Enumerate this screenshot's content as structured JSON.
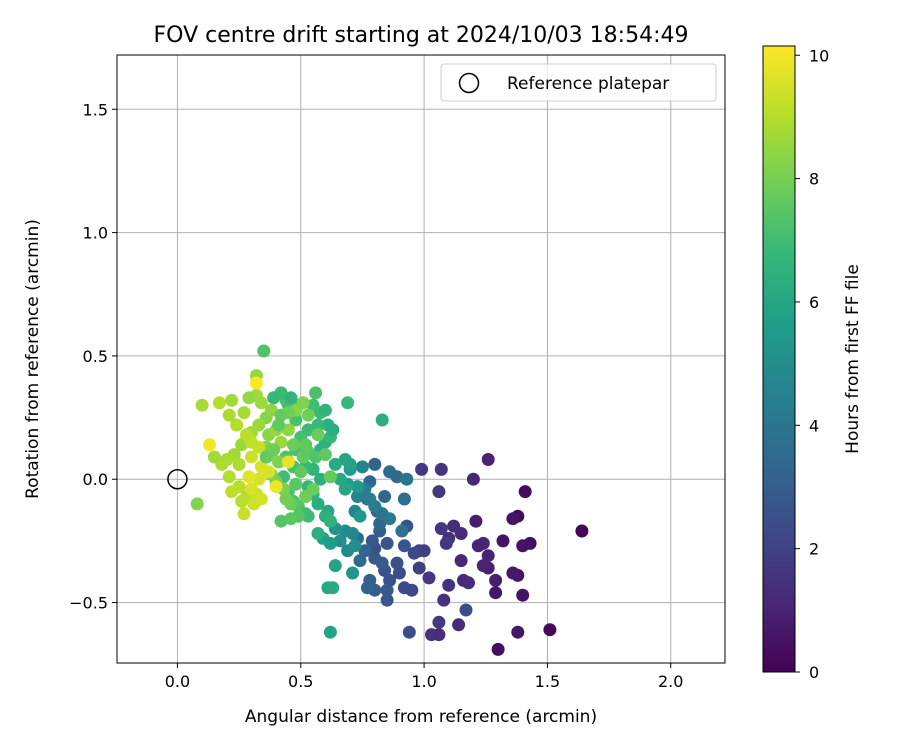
{
  "chart_data": {
    "type": "scatter",
    "title": "FOV centre drift starting at 2024/10/03 18:54:49",
    "xlabel": "Angular distance from reference (arcmin)",
    "ylabel": "Rotation from reference (arcmin)",
    "xlim": [
      -0.245,
      2.22
    ],
    "ylim": [
      -0.745,
      1.72
    ],
    "xticks": [
      0.0,
      0.5,
      1.0,
      1.5,
      2.0
    ],
    "xtick_labels": [
      "0.0",
      "0.5",
      "1.0",
      "1.5",
      "2.0"
    ],
    "yticks": [
      -0.5,
      0.0,
      0.5,
      1.0,
      1.5
    ],
    "ytick_labels": [
      "−0.5",
      "0.0",
      "0.5",
      "1.0",
      "1.5"
    ],
    "grid": true,
    "legend": {
      "label": "Reference platepar",
      "placement": "top-right"
    },
    "reference_point": {
      "x": 0.0,
      "y": 0.0
    },
    "colorbar": {
      "label": "Hours from first FF file",
      "range": [
        0,
        10.15
      ],
      "ticks": [
        0,
        2,
        4,
        6,
        8,
        10
      ],
      "tick_labels": [
        "0",
        "2",
        "4",
        "6",
        "8",
        "10"
      ],
      "colormap": "viridis"
    },
    "colormap_stops": [
      "#440154",
      "#482878",
      "#3e4989",
      "#31688e",
      "#26828e",
      "#1f9e89",
      "#35b779",
      "#6ece58",
      "#b5de2b",
      "#fde725"
    ],
    "points": [
      [
        1.64,
        -0.21,
        0.1
      ],
      [
        1.51,
        -0.61,
        0.2
      ],
      [
        1.41,
        -0.05,
        0.3
      ],
      [
        1.43,
        -0.26,
        0.4
      ],
      [
        1.4,
        -0.27,
        0.5
      ],
      [
        1.38,
        -0.15,
        0.3
      ],
      [
        1.36,
        -0.16,
        0.5
      ],
      [
        1.38,
        -0.62,
        0.6
      ],
      [
        1.4,
        -0.47,
        0.5
      ],
      [
        1.38,
        -0.39,
        0.6
      ],
      [
        1.36,
        -0.38,
        0.7
      ],
      [
        1.32,
        -0.25,
        0.5
      ],
      [
        1.3,
        -0.69,
        0.4
      ],
      [
        1.29,
        -0.46,
        0.6
      ],
      [
        1.29,
        -0.41,
        0.8
      ],
      [
        1.26,
        -0.31,
        1.0
      ],
      [
        1.26,
        -0.36,
        0.9
      ],
      [
        1.24,
        -0.35,
        1.0
      ],
      [
        1.24,
        -0.26,
        1.1
      ],
      [
        1.22,
        -0.27,
        1.0
      ],
      [
        1.21,
        -0.17,
        0.8
      ],
      [
        1.2,
        0.0,
        1.1
      ],
      [
        1.26,
        0.08,
        1.0
      ],
      [
        1.16,
        -0.41,
        1.2
      ],
      [
        1.15,
        -0.33,
        1.1
      ],
      [
        1.15,
        -0.22,
        1.2
      ],
      [
        1.12,
        -0.19,
        1.3
      ],
      [
        1.14,
        -0.59,
        1.2
      ],
      [
        1.17,
        -0.53,
        2.4
      ],
      [
        1.18,
        -0.42,
        1.3
      ],
      [
        1.1,
        -0.43,
        1.5
      ],
      [
        1.1,
        -0.24,
        1.4
      ],
      [
        1.07,
        -0.2,
        1.6
      ],
      [
        1.07,
        0.04,
        1.5
      ],
      [
        1.06,
        -0.05,
        1.6
      ],
      [
        1.09,
        -0.26,
        1.6
      ],
      [
        1.08,
        -0.49,
        1.5
      ],
      [
        1.06,
        -0.58,
        1.7
      ],
      [
        1.03,
        -0.63,
        1.5
      ],
      [
        1.06,
        -0.63,
        1.4
      ],
      [
        1.02,
        -0.4,
        1.6
      ],
      [
        0.98,
        -0.36,
        1.9
      ],
      [
        0.99,
        0.04,
        1.7
      ],
      [
        0.98,
        -0.29,
        2.0
      ],
      [
        1.0,
        -0.29,
        1.9
      ],
      [
        0.96,
        -0.3,
        2.2
      ],
      [
        0.93,
        -0.19,
        2.6
      ],
      [
        0.92,
        -0.27,
        2.7
      ],
      [
        0.94,
        -0.62,
        2.4
      ],
      [
        0.95,
        -0.45,
        2.2
      ],
      [
        0.92,
        -0.44,
        2.3
      ],
      [
        0.9,
        -0.38,
        2.4
      ],
      [
        0.89,
        -0.34,
        2.5
      ],
      [
        0.86,
        -0.41,
        2.6
      ],
      [
        0.85,
        -0.49,
        2.7
      ],
      [
        0.85,
        -0.45,
        2.8
      ],
      [
        0.84,
        -0.37,
        2.6
      ],
      [
        0.83,
        -0.34,
        2.9
      ],
      [
        0.85,
        -0.26,
        2.7
      ],
      [
        0.82,
        -0.21,
        3.0
      ],
      [
        0.8,
        -0.32,
        2.9
      ],
      [
        0.8,
        -0.28,
        2.6
      ],
      [
        0.79,
        -0.25,
        2.8
      ],
      [
        0.8,
        -0.45,
        3.0
      ],
      [
        0.78,
        -0.41,
        3.1
      ],
      [
        0.77,
        -0.44,
        3.2
      ],
      [
        0.76,
        -0.29,
        3.3
      ],
      [
        0.74,
        -0.33,
        3.4
      ],
      [
        0.73,
        -0.24,
        3.5
      ],
      [
        0.77,
        -0.08,
        3.1
      ],
      [
        0.78,
        -0.01,
        3.3
      ],
      [
        0.8,
        0.06,
        3.2
      ],
      [
        0.81,
        -0.13,
        3.2
      ],
      [
        0.82,
        -0.18,
        3.3
      ],
      [
        0.84,
        -0.07,
        3.4
      ],
      [
        0.86,
        0.03,
        3.6
      ],
      [
        0.89,
        0.01,
        3.5
      ],
      [
        0.92,
        -0.08,
        3.7
      ],
      [
        0.91,
        -0.21,
        3.8
      ],
      [
        0.93,
        0.0,
        3.9
      ],
      [
        0.86,
        -0.16,
        4.1
      ],
      [
        0.83,
        -0.14,
        4.0
      ],
      [
        0.8,
        -0.11,
        4.2
      ],
      [
        0.78,
        -0.08,
        4.4
      ],
      [
        0.76,
        -0.04,
        4.3
      ],
      [
        0.73,
        -0.07,
        4.5
      ],
      [
        0.75,
        0.05,
        4.6
      ],
      [
        0.72,
        -0.13,
        4.6
      ],
      [
        0.71,
        -0.22,
        4.7
      ],
      [
        0.68,
        -0.21,
        4.9
      ],
      [
        0.69,
        -0.29,
        4.8
      ],
      [
        0.66,
        -0.25,
        5.0
      ],
      [
        0.64,
        -0.2,
        5.2
      ],
      [
        0.71,
        -0.38,
        5.3
      ],
      [
        0.72,
        -0.27,
        5.1
      ],
      [
        0.74,
        -0.15,
        5.4
      ],
      [
        0.73,
        -0.03,
        5.5
      ],
      [
        0.7,
        0.04,
        5.6
      ],
      [
        0.7,
        0.06,
        5.8
      ],
      [
        0.68,
        0.08,
        5.9
      ],
      [
        0.69,
        -0.02,
        5.7
      ],
      [
        0.68,
        -0.04,
        6.0
      ],
      [
        0.66,
        0.0,
        6.1
      ],
      [
        0.64,
        0.06,
        6.2
      ],
      [
        0.61,
        -0.13,
        6.0
      ],
      [
        0.59,
        -0.24,
        5.8
      ],
      [
        0.62,
        -0.26,
        5.6
      ],
      [
        0.64,
        -0.35,
        5.9
      ],
      [
        0.61,
        -0.44,
        6.1
      ],
      [
        0.63,
        -0.44,
        6.2
      ],
      [
        0.62,
        -0.62,
        5.9
      ],
      [
        0.57,
        -0.22,
        6.3
      ],
      [
        0.6,
        -0.15,
        6.4
      ],
      [
        0.62,
        -0.17,
        6.5
      ],
      [
        0.57,
        -0.1,
        6.3
      ],
      [
        0.55,
        -0.06,
        6.5
      ],
      [
        0.58,
        0.0,
        6.4
      ],
      [
        0.55,
        0.04,
        6.6
      ],
      [
        0.53,
        -0.03,
        6.7
      ],
      [
        0.52,
        0.05,
        6.8
      ],
      [
        0.58,
        0.12,
        6.6
      ],
      [
        0.6,
        0.15,
        6.5
      ],
      [
        0.62,
        0.17,
        6.7
      ],
      [
        0.61,
        0.22,
        6.4
      ],
      [
        0.63,
        0.2,
        6.3
      ],
      [
        0.58,
        0.27,
        6.9
      ],
      [
        0.55,
        0.3,
        7.0
      ],
      [
        0.6,
        0.28,
        6.6
      ],
      [
        0.57,
        0.22,
        6.8
      ],
      [
        0.53,
        0.2,
        6.9
      ],
      [
        0.49,
        0.3,
        6.9
      ],
      [
        0.45,
        0.3,
        7.0
      ],
      [
        0.44,
        0.32,
        7.1
      ],
      [
        0.42,
        0.35,
        6.9
      ],
      [
        0.39,
        0.33,
        6.8
      ],
      [
        0.46,
        0.33,
        6.6
      ],
      [
        0.69,
        0.31,
        6.8
      ],
      [
        0.83,
        0.24,
        6.3
      ],
      [
        0.56,
        0.35,
        7.2
      ],
      [
        0.48,
        0.24,
        7.2
      ],
      [
        0.5,
        0.17,
        7.1
      ],
      [
        0.48,
        0.12,
        7.2
      ],
      [
        0.44,
        0.09,
        7.3
      ],
      [
        0.47,
        0.05,
        7.1
      ],
      [
        0.43,
        0.01,
        7.0
      ],
      [
        0.45,
        -0.05,
        7.2
      ],
      [
        0.47,
        -0.09,
        7.3
      ],
      [
        0.49,
        -0.11,
        7.4
      ],
      [
        0.52,
        -0.14,
        7.0
      ],
      [
        0.53,
        -0.15,
        6.9
      ],
      [
        0.49,
        -0.15,
        7.4
      ],
      [
        0.46,
        -0.16,
        7.5
      ],
      [
        0.42,
        -0.17,
        7.4
      ],
      [
        0.48,
        -0.02,
        7.5
      ],
      [
        0.5,
        0.03,
        7.6
      ],
      [
        0.51,
        0.09,
        7.7
      ],
      [
        0.53,
        0.11,
        7.5
      ],
      [
        0.56,
        0.09,
        7.3
      ],
      [
        0.6,
        0.1,
        7.6
      ],
      [
        0.62,
        0.01,
        7.7
      ],
      [
        0.55,
        -0.04,
        7.8
      ],
      [
        0.52,
        -0.07,
        7.9
      ],
      [
        0.46,
        -0.1,
        7.8
      ],
      [
        0.44,
        -0.08,
        8.0
      ],
      [
        0.43,
        -0.04,
        8.1
      ],
      [
        0.4,
        -0.01,
        8.0
      ],
      [
        0.38,
        0.02,
        8.2
      ],
      [
        0.41,
        0.07,
        8.1
      ],
      [
        0.38,
        0.1,
        8.3
      ],
      [
        0.36,
        0.13,
        8.2
      ],
      [
        0.37,
        0.18,
        8.4
      ],
      [
        0.4,
        0.2,
        8.5
      ],
      [
        0.36,
        0.25,
        8.3
      ],
      [
        0.38,
        0.28,
        8.4
      ],
      [
        0.34,
        0.31,
        8.6
      ],
      [
        0.32,
        0.34,
        8.7
      ],
      [
        0.29,
        0.33,
        8.5
      ],
      [
        0.33,
        0.22,
        8.6
      ],
      [
        0.3,
        0.19,
        8.7
      ],
      [
        0.28,
        0.16,
        8.8
      ],
      [
        0.26,
        0.14,
        8.6
      ],
      [
        0.23,
        0.1,
        8.7
      ],
      [
        0.25,
        0.06,
        8.9
      ],
      [
        0.2,
        0.08,
        8.8
      ],
      [
        0.18,
        0.06,
        8.9
      ],
      [
        0.15,
        0.09,
        8.7
      ],
      [
        0.21,
        0.01,
        9.0
      ],
      [
        0.25,
        -0.03,
        9.1
      ],
      [
        0.22,
        -0.05,
        9.2
      ],
      [
        0.28,
        -0.07,
        9.0
      ],
      [
        0.26,
        -0.09,
        9.1
      ],
      [
        0.27,
        -0.14,
        9.3
      ],
      [
        0.31,
        -0.1,
        9.4
      ],
      [
        0.32,
        -0.06,
        9.3
      ],
      [
        0.34,
        -0.08,
        9.5
      ],
      [
        0.3,
        -0.04,
        9.6
      ],
      [
        0.33,
        0.0,
        9.5
      ],
      [
        0.29,
        0.01,
        9.7
      ],
      [
        0.34,
        0.05,
        9.6
      ],
      [
        0.3,
        0.09,
        9.4
      ],
      [
        0.33,
        0.13,
        9.3
      ],
      [
        0.3,
        0.15,
        9.2
      ],
      [
        0.28,
        0.18,
        9.1
      ],
      [
        0.24,
        0.22,
        9.0
      ],
      [
        0.21,
        0.26,
        8.9
      ],
      [
        0.17,
        0.31,
        9.0
      ],
      [
        0.1,
        0.3,
        8.8
      ],
      [
        0.22,
        0.32,
        8.7
      ],
      [
        0.27,
        0.27,
        8.8
      ],
      [
        0.35,
        0.52,
        7.3
      ],
      [
        0.32,
        0.42,
        8.5
      ],
      [
        0.32,
        0.39,
        10.1
      ],
      [
        0.13,
        0.14,
        10.0
      ],
      [
        0.08,
        -0.1,
        8.2
      ],
      [
        0.45,
        0.07,
        9.8
      ],
      [
        0.4,
        -0.03,
        9.9
      ],
      [
        0.37,
        0.03,
        9.6
      ],
      [
        0.42,
        0.15,
        8.6
      ],
      [
        0.45,
        0.2,
        8.4
      ],
      [
        0.48,
        0.28,
        8.3
      ],
      [
        0.51,
        0.31,
        8.2
      ],
      [
        0.53,
        0.26,
        7.9
      ],
      [
        0.57,
        0.18,
        7.8
      ],
      [
        0.52,
        0.14,
        7.6
      ],
      [
        0.47,
        0.14,
        7.8
      ],
      [
        0.45,
        0.27,
        7.9
      ],
      [
        0.42,
        0.26,
        7.7
      ],
      [
        0.41,
        0.22,
        7.6
      ],
      [
        0.39,
        0.12,
        7.9
      ],
      [
        0.36,
        0.09,
        7.7
      ]
    ]
  }
}
